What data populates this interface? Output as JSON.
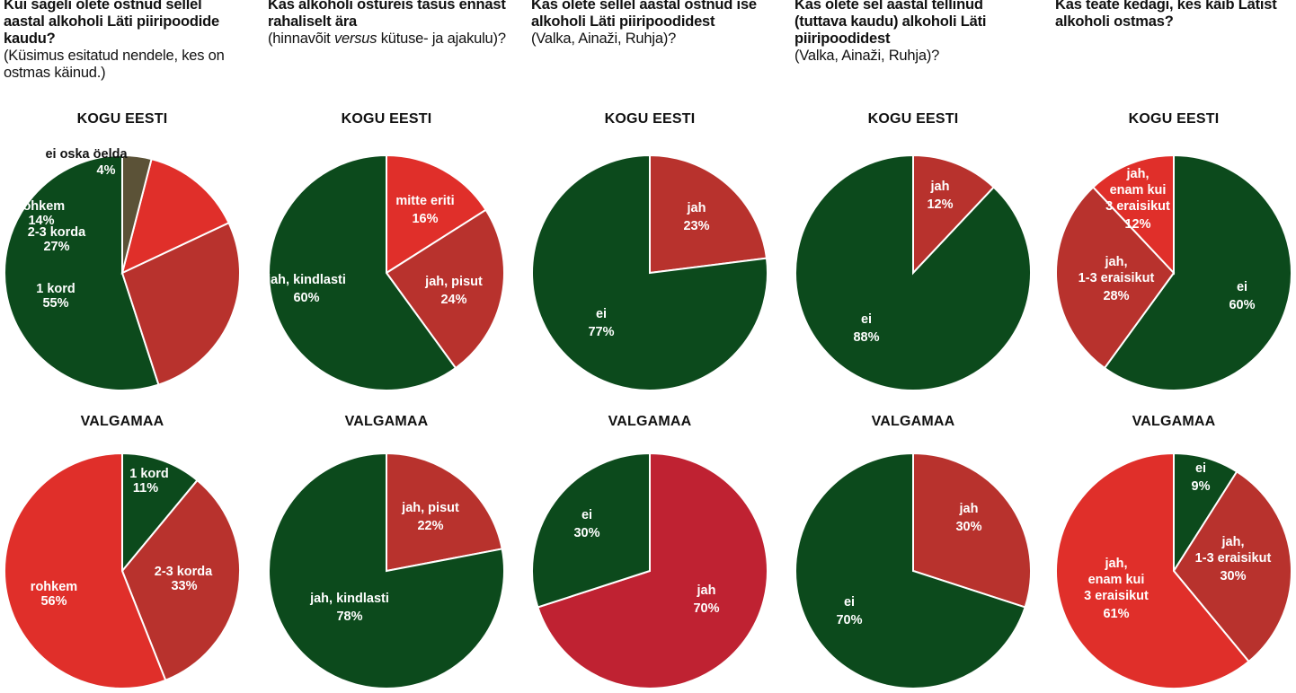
{
  "colors": {
    "dark_green": "#0c4a1c",
    "red": "#e02f2a",
    "dark_red": "#b8322d",
    "crimson": "#bf2232",
    "olive": "#5b5237"
  },
  "chart_data": [
    {
      "type": "pie",
      "question_bold": "Kui sageli olete ostnud sellel aastal alkoholi Läti piiripoodide kaudu?",
      "question_note": "(Küsimus esitatud nendele, kes on ostmas käinud.)",
      "top": {
        "title": "KOGU EESTI",
        "slices": [
          {
            "label": "1 kord",
            "value": 55,
            "text": "55%",
            "color": "#0c4a1c"
          },
          {
            "label": "2-3 korda",
            "value": 27,
            "text": "27%",
            "color": "#b8322d"
          },
          {
            "label": "rohkem",
            "value": 14,
            "text": "14%",
            "color": "#e02f2a"
          },
          {
            "label": "ei oska öelda",
            "value": 4,
            "text": "4%",
            "color": "#5b5237"
          }
        ]
      },
      "bottom": {
        "title": "VALGAMAA",
        "slices": [
          {
            "label": "1 kord",
            "value": 11,
            "text": "11%",
            "color": "#0c4a1c"
          },
          {
            "label": "2-3 korda",
            "value": 33,
            "text": "33%",
            "color": "#b8322d"
          },
          {
            "label": "rohkem",
            "value": 56,
            "text": "56%",
            "color": "#e02f2a"
          }
        ]
      }
    },
    {
      "type": "pie",
      "question_bold": "Kas alkoholi ostureis tasus ennast rahaliselt ära",
      "question_pre": "(hinnavõit ",
      "question_italic": "versus",
      "question_post": " kütuse- ja ajakulu)?",
      "top": {
        "title": "KOGU EESTI",
        "slices": [
          {
            "label": "mitte eriti",
            "value": 16,
            "text": "16%",
            "color": "#e02f2a"
          },
          {
            "label": "jah, pisut",
            "value": 24,
            "text": "24%",
            "color": "#b8322d"
          },
          {
            "label": "jah, kindlasti",
            "value": 60,
            "text": "60%",
            "color": "#0c4a1c"
          }
        ]
      },
      "bottom": {
        "title": "VALGAMAA",
        "slices": [
          {
            "label": "jah, pisut",
            "value": 22,
            "text": "22%",
            "color": "#b8322d"
          },
          {
            "label": "jah, kindlasti",
            "value": 78,
            "text": "78%",
            "color": "#0c4a1c"
          }
        ]
      }
    },
    {
      "type": "pie",
      "question_bold": "Kas olete sellel aastal ostnud ise alkoholi Läti piiripoodidest",
      "question_note": "(Valka, Ainaži, Ruhja)?",
      "top": {
        "title": "KOGU EESTI",
        "slices": [
          {
            "label": "jah",
            "value": 23,
            "text": "23%",
            "color": "#b8322d"
          },
          {
            "label": "ei",
            "value": 77,
            "text": "77%",
            "color": "#0c4a1c"
          }
        ]
      },
      "bottom": {
        "title": "VALGAMAA",
        "slices": [
          {
            "label": "jah",
            "value": 70,
            "text": "70%",
            "color": "#bf2232"
          },
          {
            "label": "ei",
            "value": 30,
            "text": "30%",
            "color": "#0c4a1c"
          }
        ]
      }
    },
    {
      "type": "pie",
      "question_bold": "Kas olete sel aastal tellinud (tuttava kaudu) alkoholi Läti piiripoodidest",
      "question_note": "(Valka, Ainaži, Ruhja)?",
      "top": {
        "title": "KOGU EESTI",
        "slices": [
          {
            "label": "jah",
            "value": 12,
            "text": "12%",
            "color": "#b8322d"
          },
          {
            "label": "ei",
            "value": 88,
            "text": "88%",
            "color": "#0c4a1c"
          }
        ]
      },
      "bottom": {
        "title": "VALGAMAA",
        "slices": [
          {
            "label": "jah",
            "value": 30,
            "text": "30%",
            "color": "#b8322d"
          },
          {
            "label": "ei",
            "value": 70,
            "text": "70%",
            "color": "#0c4a1c"
          }
        ]
      }
    },
    {
      "type": "pie",
      "question_bold": "Kas teate kedagi, kes käib Lätist alkoholi ostmas?",
      "top": {
        "title": "KOGU EESTI",
        "slices": [
          {
            "label": "ei",
            "value": 60,
            "text": "60%",
            "color": "#0c4a1c"
          },
          {
            "label": "jah, 1-3 eraisikut",
            "value": 28,
            "text": "28%",
            "color": "#b8322d"
          },
          {
            "label": "jah, enam kui 3 eraisikut",
            "value": 12,
            "text": "12%",
            "color": "#e02f2a"
          }
        ]
      },
      "bottom": {
        "title": "VALGAMAA",
        "slices": [
          {
            "label": "ei",
            "value": 9,
            "text": "9%",
            "color": "#0c4a1c"
          },
          {
            "label": "jah, 1-3 eraisikut",
            "value": 30,
            "text": "30%",
            "color": "#b8322d"
          },
          {
            "label": "jah, enam kui 3 eraisikut",
            "value": 61,
            "text": "61%",
            "color": "#e02f2a"
          }
        ]
      }
    }
  ]
}
